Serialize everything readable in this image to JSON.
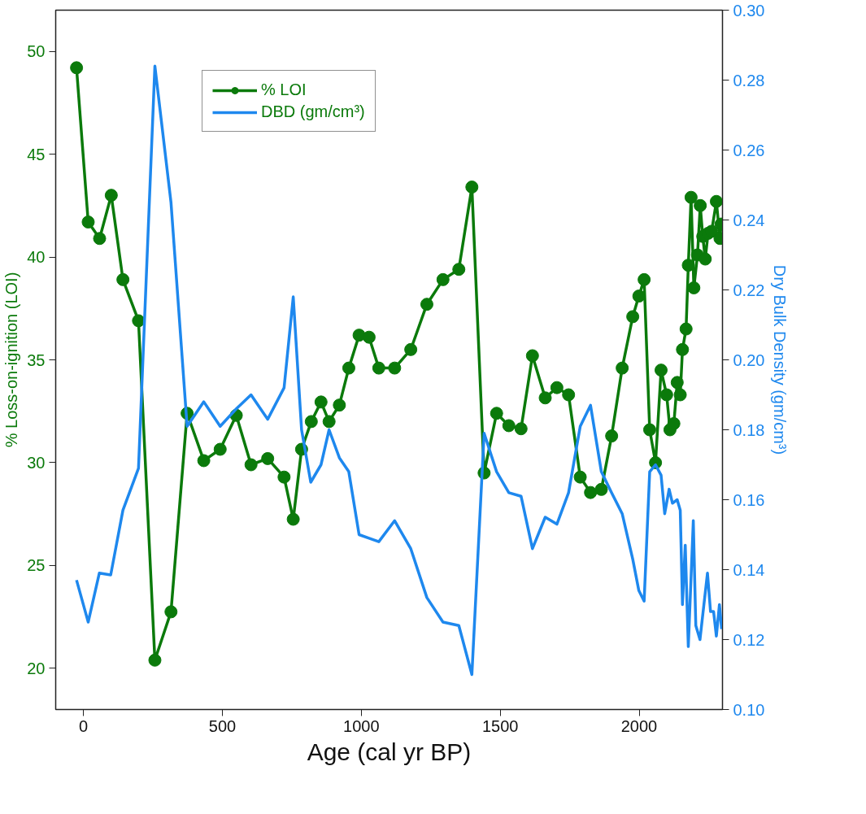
{
  "chart_data": {
    "type": "line",
    "xlabel": "Age (cal yr BP)",
    "ylabel": "% Loss-on-ignition (LOI)",
    "y2label": "Dry Bulk Density (gm/cm³)",
    "xlim": [
      -100,
      2300
    ],
    "xticks": [
      0,
      500,
      1000,
      1500,
      2000
    ],
    "ylim": [
      18,
      52
    ],
    "yticks": [
      20,
      25,
      30,
      35,
      40,
      45,
      50
    ],
    "y2lim": [
      0.1,
      0.3
    ],
    "y2ticks": [
      {
        "value": 0.1,
        "label": "0.10"
      },
      0.12,
      0.14,
      0.16,
      0.18,
      {
        "value": 0.2,
        "label": "0.20"
      },
      0.22,
      0.24,
      0.26,
      0.28,
      {
        "value": 0.3,
        "label": "0.30"
      }
    ],
    "grid": false,
    "legend": "top left",
    "series": [
      {
        "name": "% LOI",
        "color": "#0b7a0b",
        "marker": "circle",
        "x": [
          -25,
          17,
          58,
          100,
          142,
          198,
          257,
          315,
          373,
          433,
          492,
          550,
          603,
          663,
          722,
          755,
          785,
          820,
          855,
          884,
          921,
          955,
          992,
          1028,
          1063,
          1120,
          1178,
          1236,
          1294,
          1351,
          1398,
          1442,
          1487,
          1531,
          1575,
          1616,
          1662,
          1704,
          1746,
          1788,
          1825,
          1864,
          1901,
          1939,
          1977,
          1999,
          2018,
          2038,
          2059,
          2079,
          2099,
          2111,
          2125,
          2137,
          2148,
          2156,
          2169,
          2177,
          2187,
          2197,
          2210,
          2220,
          2229,
          2238,
          2248,
          2261,
          2278,
          2291,
          2295
        ],
        "values": [
          49.2,
          41.7,
          40.9,
          43.0,
          38.9,
          36.9,
          20.4,
          22.75,
          32.4,
          30.1,
          30.65,
          32.3,
          29.9,
          30.2,
          29.3,
          27.25,
          30.65,
          32.0,
          32.95,
          32.0,
          32.8,
          34.6,
          36.2,
          36.1,
          34.6,
          34.6,
          35.5,
          37.7,
          38.9,
          39.4,
          43.4,
          29.5,
          32.4,
          31.8,
          31.65,
          35.2,
          33.15,
          33.65,
          33.3,
          29.3,
          28.55,
          28.7,
          31.3,
          34.6,
          37.1,
          38.1,
          38.9,
          31.6,
          30.0,
          34.5,
          33.3,
          31.6,
          31.9,
          33.9,
          33.3,
          35.5,
          36.5,
          39.6,
          42.9,
          38.5,
          40.1,
          42.5,
          41.0,
          39.9,
          41.15,
          41.25,
          42.7,
          40.9,
          41.6
        ]
      },
      {
        "name": "DBD (gm/cm³)",
        "color": "#1e88ee",
        "marker": "none",
        "axis": "y2",
        "x": [
          -25,
          17,
          57,
          98,
          142,
          198,
          257,
          315,
          373,
          433,
          492,
          550,
          603,
          663,
          722,
          755,
          785,
          818,
          855,
          884,
          921,
          955,
          992,
          1028,
          1063,
          1120,
          1178,
          1236,
          1294,
          1351,
          1398,
          1442,
          1487,
          1531,
          1575,
          1616,
          1662,
          1704,
          1746,
          1788,
          1825,
          1864,
          1901,
          1939,
          1977,
          1999,
          2018,
          2038,
          2059,
          2079,
          2092,
          2108,
          2120,
          2137,
          2148,
          2156,
          2166,
          2177,
          2195,
          2204,
          2219,
          2236,
          2246,
          2257,
          2268,
          2278,
          2289,
          2297
        ],
        "values": [
          0.137,
          0.125,
          0.139,
          0.1385,
          0.157,
          0.169,
          0.284,
          0.245,
          0.181,
          0.188,
          0.181,
          0.186,
          0.19,
          0.183,
          0.192,
          0.218,
          0.18,
          0.165,
          0.17,
          0.18,
          0.172,
          0.168,
          0.15,
          0.149,
          0.148,
          0.154,
          0.146,
          0.132,
          0.125,
          0.124,
          0.11,
          0.179,
          0.168,
          0.162,
          0.161,
          0.146,
          0.155,
          0.153,
          0.162,
          0.181,
          0.187,
          0.168,
          0.162,
          0.156,
          0.143,
          0.134,
          0.131,
          0.168,
          0.17,
          0.167,
          0.156,
          0.163,
          0.159,
          0.16,
          0.157,
          0.13,
          0.147,
          0.118,
          0.154,
          0.124,
          0.12,
          0.132,
          0.139,
          0.128,
          0.128,
          0.121,
          0.13,
          0.123
        ]
      }
    ]
  }
}
